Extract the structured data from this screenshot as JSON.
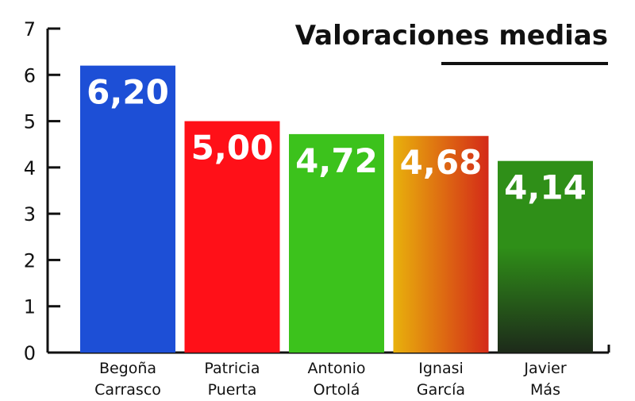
{
  "chart_data": {
    "type": "bar",
    "title": "Valoraciones medias",
    "xlabel": "",
    "ylabel": "",
    "ylim": [
      0,
      7
    ],
    "yticks": [
      "0",
      "1",
      "2",
      "3",
      "4",
      "5",
      "6",
      "7"
    ],
    "categories": [
      [
        "Begoña",
        "Carrasco"
      ],
      [
        "Patricia",
        "Puerta"
      ],
      [
        "Antonio",
        "Ortolá"
      ],
      [
        "Ignasi",
        "García"
      ],
      [
        "Javier",
        "Más"
      ]
    ],
    "values": [
      6.2,
      5.0,
      4.72,
      4.68,
      4.14
    ],
    "value_labels": [
      "6,20",
      "5,00",
      "4,72",
      "4,68",
      "4,14"
    ],
    "bar_colors": [
      [
        "#1d4fd6",
        "#1d4fd6"
      ],
      [
        "#ff1018",
        "#ff1018"
      ],
      [
        "#3cc21c",
        "#3cc21c"
      ],
      [
        "#e8b10c",
        "#d42a18"
      ],
      [
        "#2f8f18",
        "#1d2a1a"
      ]
    ],
    "grid": false,
    "legend": "none"
  }
}
